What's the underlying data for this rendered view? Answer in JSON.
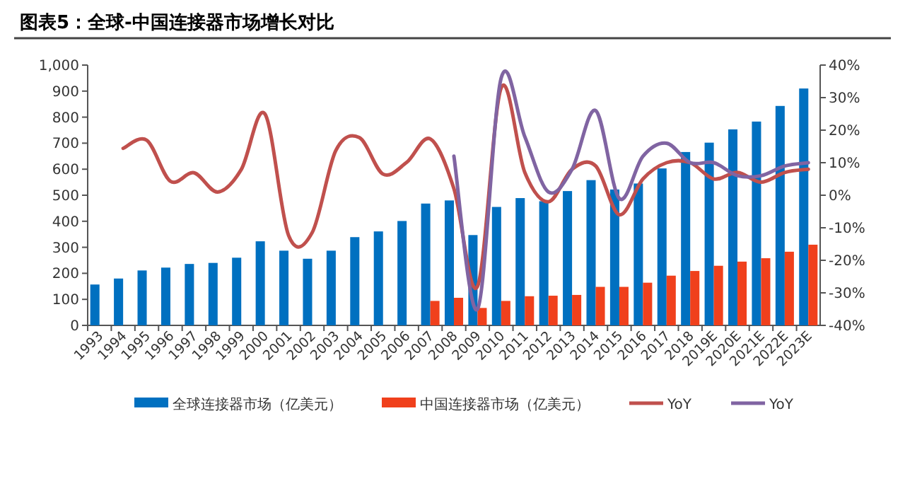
{
  "chart_data": {
    "type": "bar",
    "title": "图表5：全球-中国连接器市场增长对比",
    "categories": [
      "1993",
      "1994",
      "1995",
      "1996",
      "1997",
      "1998",
      "1999",
      "2000",
      "2001",
      "2002",
      "2003",
      "2004",
      "2005",
      "2006",
      "2007",
      "2008",
      "2009",
      "2010",
      "2011",
      "2012",
      "2013",
      "2014",
      "2015",
      "2016",
      "2017",
      "2018",
      "2019E",
      "2020E",
      "2021E",
      "2022E",
      "2023E"
    ],
    "series": [
      {
        "name": "全球连接器市场（亿美元）",
        "color": "#0070c0",
        "values": [
          157,
          180,
          211,
          222,
          236,
          240,
          260,
          323,
          287,
          256,
          287,
          339,
          361,
          401,
          468,
          480,
          347,
          455,
          489,
          477,
          516,
          558,
          522,
          545,
          603,
          666,
          702,
          753,
          783,
          843,
          910
        ]
      },
      {
        "name": "中国连接器市场（亿美元）",
        "color": "#f0401c",
        "values": [
          null,
          null,
          null,
          null,
          null,
          null,
          null,
          null,
          null,
          null,
          null,
          null,
          null,
          null,
          94,
          106,
          67,
          94,
          112,
          114,
          117,
          148,
          148,
          164,
          191,
          209,
          229,
          245,
          258,
          283,
          310
        ]
      },
      {
        "name": "YoY",
        "type": "line",
        "axis": "y2",
        "color": "#c0504d",
        "values": [
          null,
          14.4,
          16.9,
          4.3,
          6.9,
          1,
          7.9,
          25,
          -12.3,
          -11.5,
          13.7,
          17.7,
          6.5,
          10.1,
          17.3,
          2,
          -28,
          33,
          7,
          -2,
          8,
          9,
          -6,
          5,
          10,
          10,
          5,
          7,
          4,
          7,
          8
        ]
      },
      {
        "name": "YoY",
        "type": "line",
        "axis": "y2",
        "color": "#8064a2",
        "values": [
          null,
          null,
          null,
          null,
          null,
          null,
          null,
          null,
          null,
          null,
          null,
          null,
          null,
          null,
          null,
          12,
          -35,
          36,
          18,
          1,
          8,
          26,
          -1,
          12,
          16,
          10,
          10,
          6,
          6,
          9,
          10
        ]
      }
    ],
    "ylim": [
      0,
      1000
    ],
    "yticks": [
      0,
      100,
      200,
      300,
      400,
      500,
      600,
      700,
      800,
      900,
      {
        "value": 1000,
        "label": "1,000"
      }
    ],
    "y2lim": [
      -40,
      40
    ],
    "y2ticks": [
      {
        "value": -40,
        "label": "-40%"
      },
      {
        "value": -30,
        "label": "-30%"
      },
      {
        "value": -20,
        "label": "-20%"
      },
      {
        "value": -10,
        "label": "-10%"
      },
      {
        "value": 0,
        "label": "0%"
      },
      {
        "value": 10,
        "label": "10%"
      },
      {
        "value": 20,
        "label": "20%"
      },
      {
        "value": 30,
        "label": "30%"
      },
      {
        "value": 40,
        "label": "40%"
      }
    ],
    "legend": "bottom",
    "grid": false
  }
}
